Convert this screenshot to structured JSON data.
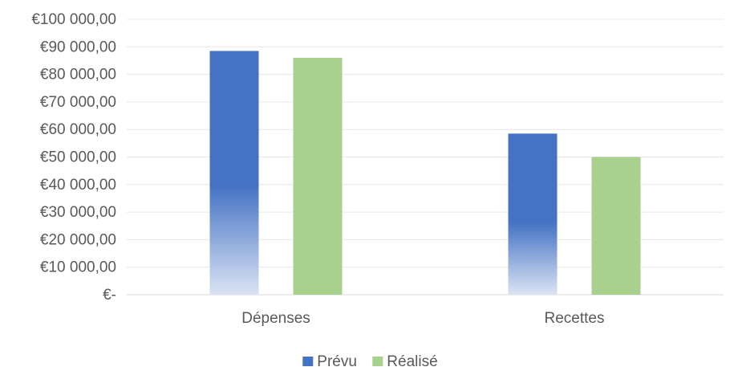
{
  "chart_data": {
    "type": "bar",
    "categories": [
      "Dépenses",
      "Recettes"
    ],
    "series": [
      {
        "name": "Prévu",
        "values": [
          88500,
          58500
        ],
        "color": "#4472C4",
        "fill": "gradient-fade-to-bottom"
      },
      {
        "name": "Réalisé",
        "values": [
          86000,
          50000
        ],
        "color": "#A9D18E"
      }
    ],
    "ylim": [
      0,
      100000
    ],
    "yticks": [
      0,
      10000,
      20000,
      30000,
      40000,
      50000,
      60000,
      70000,
      80000,
      90000,
      100000
    ],
    "ytick_labels": [
      "€-",
      "€10 000,00",
      "€20 000,00",
      "€30 000,00",
      "€40 000,00",
      "€50 000,00",
      "€60 000,00",
      "€70 000,00",
      "€80 000,00",
      "€90 000,00",
      "€100 000,00"
    ],
    "grid": true,
    "legend_position": "bottom",
    "title": "",
    "xlabel": "",
    "ylabel": ""
  }
}
